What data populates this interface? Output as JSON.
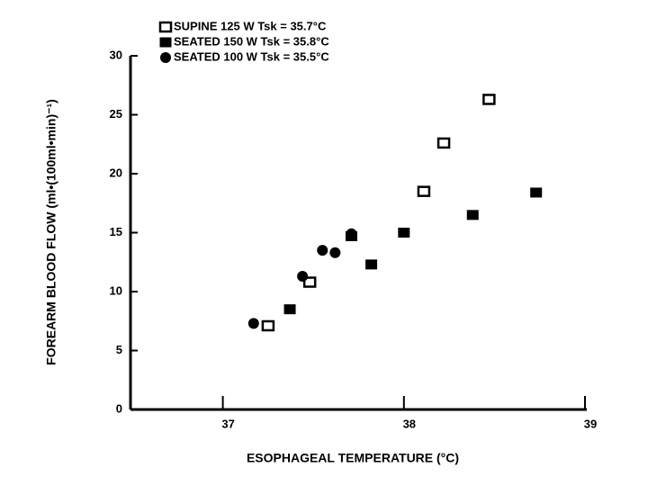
{
  "chart_data": {
    "type": "scatter",
    "x_label": "ESOPHAGEAL TEMPERATURE (°C)",
    "y_label": "FOREARM BLOOD FLOW (ml•(100ml•min)⁻¹)",
    "xlim": [
      36.5,
      39
    ],
    "xticks": [
      37,
      38,
      39
    ],
    "ylim": [
      0,
      30
    ],
    "yticks": [
      0,
      5,
      10,
      15,
      20,
      25,
      30
    ],
    "grid": false,
    "series": [
      {
        "name": "SUPINE 125 W Tsk = 35.7°C",
        "color": "#000000",
        "marker": "square-open",
        "x": [
          37.25,
          37.48,
          38.11,
          38.22,
          38.47
        ],
        "values": [
          7.1,
          10.8,
          18.5,
          22.6,
          26.3
        ]
      },
      {
        "name": "SEATED 150 W Tsk = 35.8°C",
        "color": "#000000",
        "marker": "square",
        "x": [
          37.37,
          37.71,
          37.82,
          38.0,
          38.38,
          38.73
        ],
        "values": [
          8.5,
          14.7,
          12.3,
          15.0,
          16.5,
          18.4
        ]
      },
      {
        "name": "SEATED 100 W Tsk = 35.5°C",
        "color": "#000000",
        "marker": "circle",
        "x": [
          37.17,
          37.44,
          37.55,
          37.62,
          37.71
        ],
        "values": [
          7.3,
          11.3,
          13.5,
          13.3,
          14.9
        ]
      }
    ]
  }
}
